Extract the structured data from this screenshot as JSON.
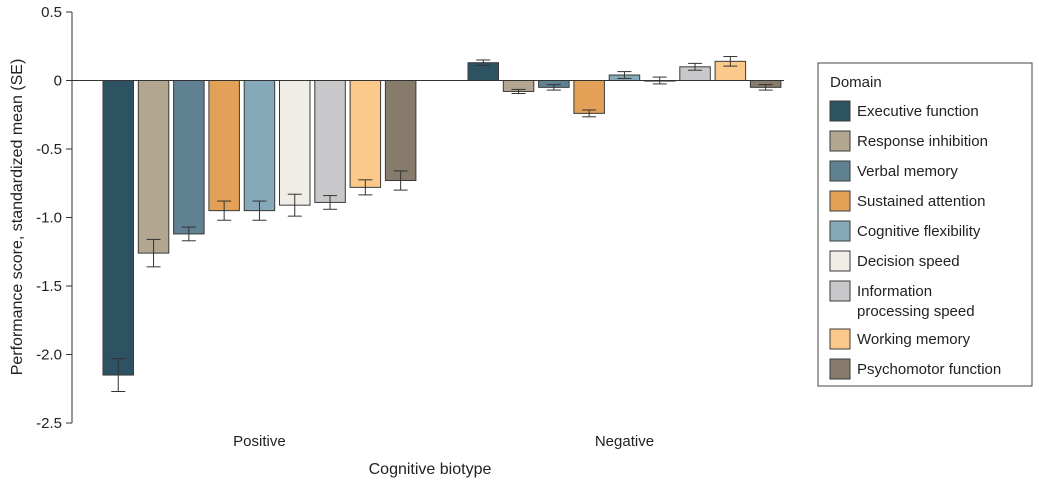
{
  "chart_data": {
    "type": "bar",
    "xlabel": "Cognitive biotype",
    "ylabel": "Performance score, standardized mean (SE)",
    "ylim": [
      -2.5,
      0.5
    ],
    "yticks": [
      0.5,
      0,
      -0.5,
      -1.0,
      -1.5,
      -2.0,
      -2.5
    ],
    "ytick_labels": [
      "0.5",
      "0",
      "-0.5",
      "-1.0",
      "-1.5",
      "-2.0",
      "-2.5"
    ],
    "categories": [
      "Positive",
      "Negative"
    ],
    "grid": false,
    "legend": {
      "title": "Domain",
      "placement": "right"
    },
    "series": [
      {
        "name": "Executive function",
        "color": "#2d5261",
        "values": [
          -2.15,
          0.13
        ],
        "se": [
          0.12,
          0.02
        ]
      },
      {
        "name": "Response inhibition",
        "color": "#b2a691",
        "values": [
          -1.26,
          -0.08
        ],
        "se": [
          0.1,
          0.015
        ]
      },
      {
        "name": "Verbal memory",
        "color": "#5f8191",
        "values": [
          -1.12,
          -0.05
        ],
        "se": [
          0.05,
          0.02
        ]
      },
      {
        "name": "Sustained attention",
        "color": "#e3a157",
        "values": [
          -0.95,
          -0.24
        ],
        "se": [
          0.07,
          0.025
        ]
      },
      {
        "name": "Cognitive flexibility",
        "color": "#86a9b9",
        "values": [
          -0.95,
          0.04
        ],
        "se": [
          0.07,
          0.025
        ]
      },
      {
        "name": "Decision speed",
        "color": "#efede6",
        "values": [
          -0.91,
          0.0
        ],
        "se": [
          0.08,
          0.025
        ]
      },
      {
        "name": [
          "Information",
          "processing speed"
        ],
        "color": "#c8c8ca",
        "values": [
          -0.89,
          0.1
        ],
        "se": [
          0.05,
          0.025
        ]
      },
      {
        "name": "Working memory",
        "color": "#fbc98a",
        "values": [
          -0.78,
          0.14
        ],
        "se": [
          0.055,
          0.035
        ]
      },
      {
        "name": "Psychomotor function",
        "color": "#877b6c",
        "values": [
          -0.73,
          -0.05
        ],
        "se": [
          0.07,
          0.02
        ]
      }
    ]
  }
}
